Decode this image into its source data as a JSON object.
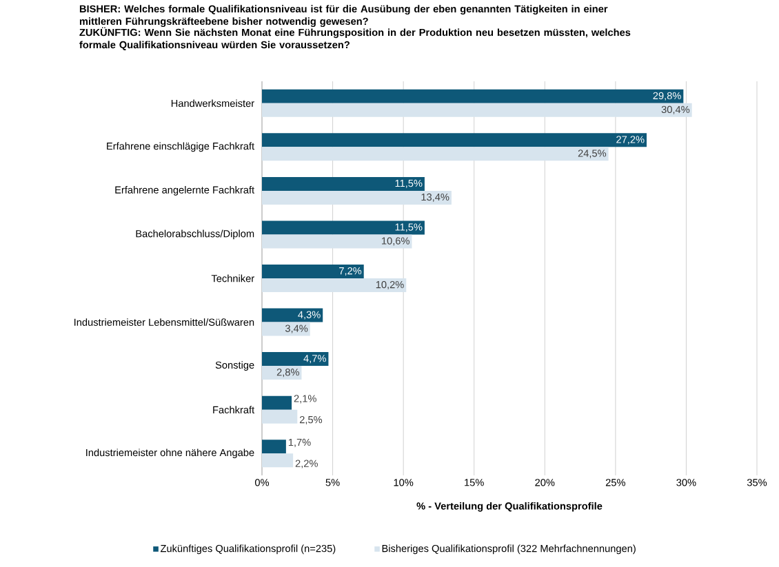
{
  "chart_data": {
    "type": "bar",
    "orientation": "horizontal",
    "title": "BISHER: Welches formale Qualifikationsniveau ist für die Ausübung der eben genannten Tätigkeiten in einer mittleren Führungskräfteebene bisher notwendig gewesen?",
    "subtitle": "ZUKÜNFTIG: Wenn Sie nächsten Monat eine Führungsposition in der Produktion neu besetzen müssten, welches formale Qualifikationsniveau würden Sie voraussetzen?",
    "xlabel": "% - Verteilung der Qualifikationsprofile",
    "categories": [
      "Handwerksmeister",
      "Erfahrene einschlägige Fachkraft",
      "Erfahrene angelernte Fachkraft",
      "Bachelorabschluss/Diplom",
      "Techniker",
      "Industriemeister Lebensmittel/Süßwaren",
      "Sonstige",
      "Fachkraft",
      "Industriemeister ohne nähere Angabe"
    ],
    "series": [
      {
        "name": "Zukünftiges Qualifikationsprofil (n=235)",
        "color": "#0e5878",
        "values": [
          29.8,
          27.2,
          11.5,
          11.5,
          7.2,
          4.3,
          4.7,
          2.1,
          1.7
        ],
        "value_labels": [
          "29,8%",
          "27,2%",
          "11,5%",
          "11,5%",
          "7,2%",
          "4,3%",
          "4,7%",
          "2,1%",
          "1,7%"
        ]
      },
      {
        "name": "Bisheriges Qualifikationsprofil (322 Mehrfachnennungen)",
        "color": "#d7e4ee",
        "values": [
          30.4,
          24.5,
          13.4,
          10.6,
          10.2,
          3.4,
          2.8,
          2.5,
          2.2
        ],
        "value_labels": [
          "30,4%",
          "24,5%",
          "13,4%",
          "10,6%",
          "10,2%",
          "3,4%",
          "2,8%",
          "2,5%",
          "2,2%"
        ]
      }
    ],
    "xlim": [
      0,
      35
    ],
    "xticks": [
      {
        "value": 0,
        "label": "0%"
      },
      {
        "value": 5,
        "label": "5%"
      },
      {
        "value": 10,
        "label": "10%"
      },
      {
        "value": 15,
        "label": "15%"
      },
      {
        "value": 20,
        "label": "20%"
      },
      {
        "value": 25,
        "label": "25%"
      },
      {
        "value": 30,
        "label": "30%"
      },
      {
        "value": 35,
        "label": "35%"
      }
    ],
    "grid": "x",
    "legend": "bottom"
  }
}
